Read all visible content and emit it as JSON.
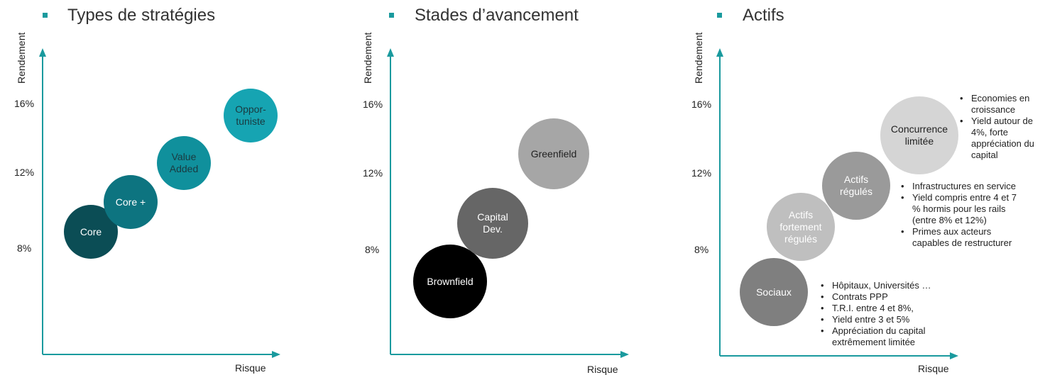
{
  "axes": {
    "x_label": "Risque",
    "y_label": "Rendement",
    "ticks": [
      "16%",
      "12%",
      "8%"
    ]
  },
  "panels": [
    {
      "title": "Types de stratégies",
      "bubbles": [
        {
          "label": "Core",
          "color": "#0b4d55",
          "text_color": "#ffffff"
        },
        {
          "label": "Core +",
          "color": "#0d7480",
          "text_color": "#ffffff"
        },
        {
          "label": "Value Added",
          "color": "#10909c",
          "text_color": "#1a3a40"
        },
        {
          "label": "Oppor-tuniste",
          "color": "#16a4b2",
          "text_color": "#1a3a40"
        }
      ]
    },
    {
      "title": "Stades d’avancement",
      "bubbles": [
        {
          "label": "Brownfield",
          "color": "#000000",
          "text_color": "#ffffff"
        },
        {
          "label": "Capital Dev.",
          "color": "#666666",
          "text_color": "#ffffff"
        },
        {
          "label": "Greenfield",
          "color": "#a6a6a6",
          "text_color": "#222222"
        }
      ]
    },
    {
      "title": "Actifs",
      "bubbles": [
        {
          "label": "Sociaux",
          "color": "#7f7f7f",
          "text_color": "#ffffff"
        },
        {
          "label": "Actifs fortement régulés",
          "color": "#bfbfbf",
          "text_color": "#ffffff"
        },
        {
          "label": "Actifs régulés",
          "color": "#9a9a9a",
          "text_color": "#ffffff"
        },
        {
          "label": "Concurrence limitée",
          "color": "#d5d5d5",
          "text_color": "#222222"
        }
      ],
      "notes": {
        "concurrence": [
          "Economies en croissance",
          "Yield autour de 4%, forte appréciation du capital"
        ],
        "regules": [
          "Infrastructures en service",
          "Yield compris entre 4 et 7 % hormis pour les rails (entre 8% et 12%)",
          "Primes aux acteurs capables de restructurer"
        ],
        "sociaux": [
          "Hôpitaux, Universités …",
          "Contrats PPP",
          "T.R.I. entre 4 et 8%,",
          "Yield entre 3 et 5%",
          "Appréciation du capital extrêmement limitée"
        ]
      }
    }
  ],
  "colors": {
    "accent": "#1a9a9e",
    "axis": "#1a9a9e"
  }
}
